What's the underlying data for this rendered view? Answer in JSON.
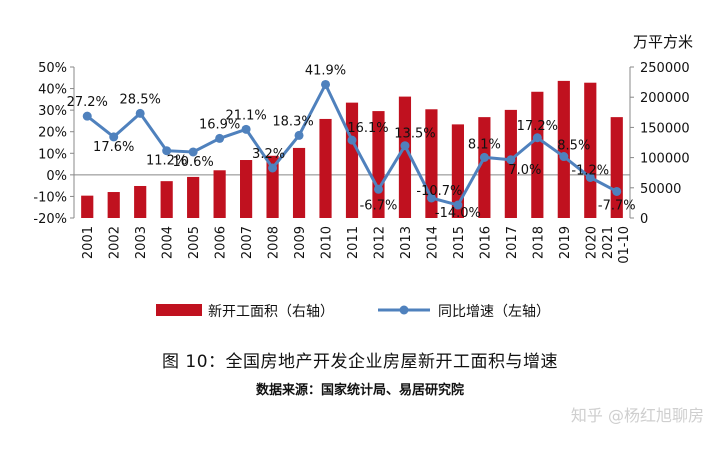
{
  "chart_data": {
    "type": "bar",
    "categories": [
      "2001",
      "2002",
      "2003",
      "2004",
      "2005",
      "2006",
      "2007",
      "2008",
      "2009",
      "2010",
      "2011",
      "2012",
      "2013",
      "2014",
      "2015",
      "2016",
      "2017",
      "2018",
      "2019",
      "2020",
      "2021 01-10"
    ],
    "series": [
      {
        "name": "新开工面积（右轴）",
        "type": "bar",
        "axis": "right",
        "color": "#c0111f",
        "values": [
          37000,
          43000,
          53000,
          61000,
          68000,
          79000,
          96000,
          103000,
          116000,
          164000,
          191000,
          177000,
          201000,
          180000,
          155000,
          167000,
          179000,
          209000,
          227000,
          224000,
          167000
        ]
      },
      {
        "name": "同比增速（左轴）",
        "type": "line",
        "axis": "left",
        "color": "#4f81bd",
        "values": [
          27.2,
          17.6,
          28.5,
          11.2,
          10.6,
          16.9,
          21.1,
          3.2,
          18.3,
          41.9,
          16.1,
          -6.7,
          13.5,
          -10.7,
          -14.0,
          8.1,
          7.0,
          17.2,
          8.5,
          -1.2,
          -7.7
        ],
        "labels": [
          "27.2%",
          "17.6%",
          "28.5%",
          "11.2%",
          "10.6%",
          "16.9%",
          "21.1%",
          "3.2%",
          "18.3%",
          "41.9%",
          "16.1%",
          "-6.7%",
          "13.5%",
          "-10.7%",
          "-14.0%",
          "8.1%",
          "7.0%",
          "17.2%",
          "8.5%",
          "-1.2%",
          "-7.7%"
        ]
      }
    ],
    "left_axis": {
      "min": -20,
      "max": 50,
      "ticks": [
        "50%",
        "40%",
        "30%",
        "20%",
        "10%",
        "0%",
        "-10%",
        "-20%"
      ]
    },
    "right_axis": {
      "min": 0,
      "max": 250000,
      "unit": "万平方米",
      "ticks": [
        "250000",
        "200000",
        "150000",
        "100000",
        "50000",
        "0"
      ]
    },
    "legend_position": "bottom"
  },
  "caption": "图 10：全国房地产开发企业房屋新开工面积与增速",
  "source": "数据来源：国家统计局、易居研究院",
  "watermark": "知乎 @杨红旭聊房"
}
